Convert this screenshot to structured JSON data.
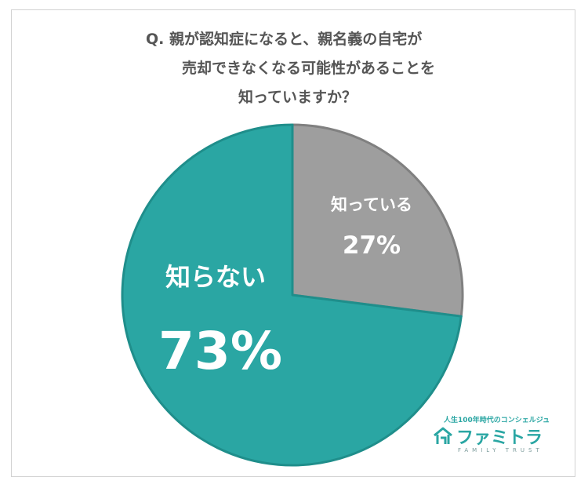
{
  "question": {
    "line1": "Q. 親が認知症になると、親名義の自宅が",
    "line2": "売却できなくなる可能性があることを",
    "line3": "知っていますか？"
  },
  "chart_data": {
    "type": "pie",
    "categories": [
      "知っている",
      "知らない"
    ],
    "values": [
      27,
      73
    ],
    "labels": [
      "27%",
      "73%"
    ],
    "colors": [
      "#9e9e9e",
      "#2aa6a3"
    ],
    "border_colors": [
      "#808080",
      "#1f8e8b"
    ]
  },
  "logo": {
    "tagline": "人生100年時代のコンシェルジュ",
    "name": "ファミトラ",
    "sub": "FAMILY TRUST",
    "icon": "house-icon"
  }
}
